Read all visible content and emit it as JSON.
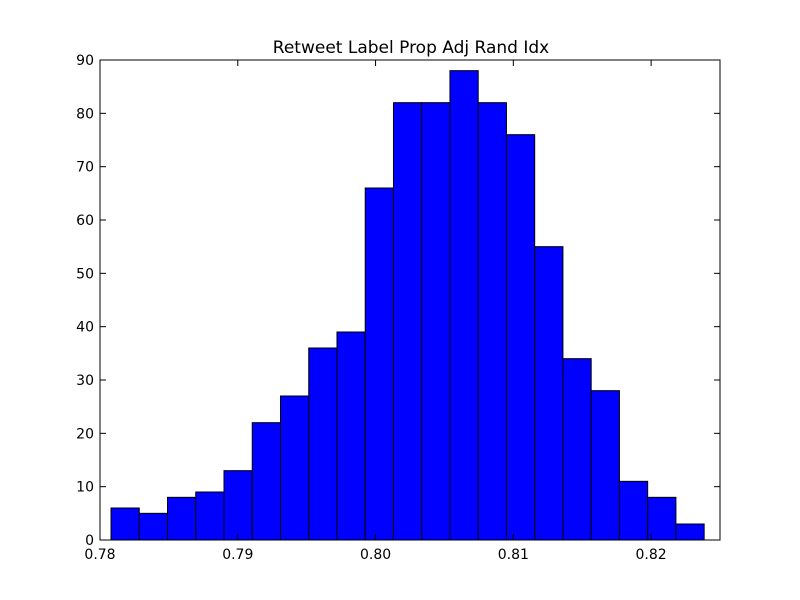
{
  "chart_data": {
    "type": "bar",
    "title": "Retweet Label Prop Adj Rand Idx",
    "xlabel": "",
    "ylabel": "",
    "xlim": [
      0.78,
      0.825
    ],
    "ylim": [
      0,
      90
    ],
    "bin_edges": [
      0.7808,
      0.78285,
      0.7849,
      0.78695,
      0.789,
      0.79105,
      0.7931,
      0.79515,
      0.7972,
      0.79925,
      0.8013,
      0.80335,
      0.8054,
      0.80745,
      0.8095,
      0.81155,
      0.8136,
      0.81565,
      0.8177,
      0.81975,
      0.8218,
      0.82385
    ],
    "values": [
      6,
      5,
      8,
      9,
      13,
      22,
      27,
      36,
      39,
      66,
      82,
      82,
      88,
      82,
      76,
      55,
      34,
      28,
      11,
      8,
      3
    ],
    "xticks": [
      0.78,
      0.79,
      0.8,
      0.81,
      0.82
    ],
    "xtick_labels": [
      "0.78",
      "0.79",
      "0.80",
      "0.81",
      "0.82"
    ],
    "yticks": [
      0,
      10,
      20,
      30,
      40,
      50,
      60,
      70,
      80,
      90
    ],
    "ytick_labels": [
      "0",
      "10",
      "20",
      "30",
      "40",
      "50",
      "60",
      "70",
      "80",
      "90"
    ],
    "bar_color": "#0000ff",
    "edge_color": "#000000",
    "grid": false,
    "legend": "none"
  }
}
